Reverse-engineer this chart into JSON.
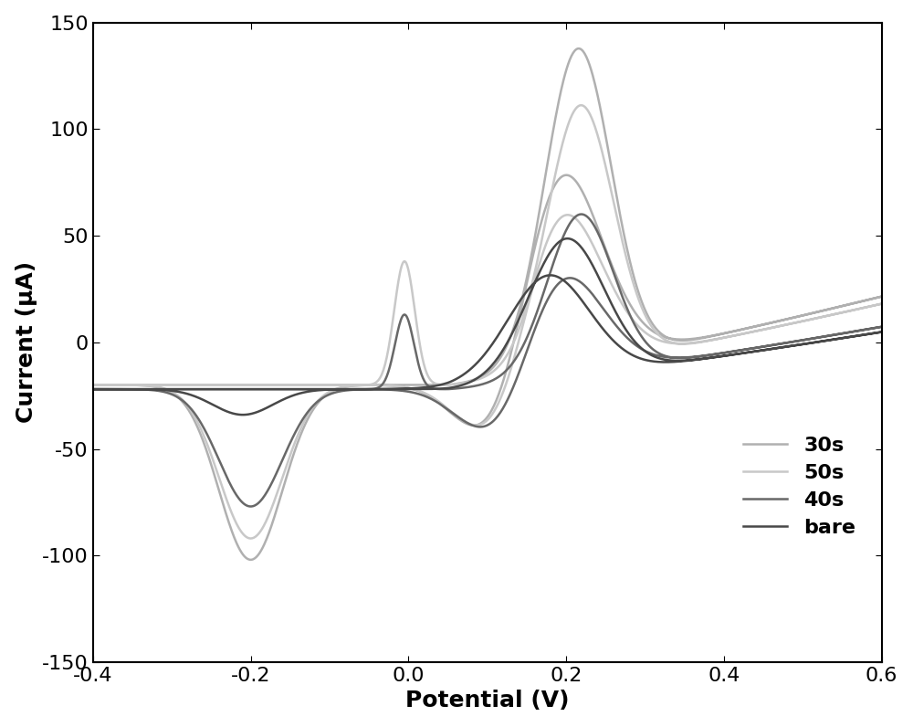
{
  "title": "",
  "xlabel": "Potential (V)",
  "ylabel": "Current (μA)",
  "xlim": [
    -0.4,
    0.6
  ],
  "ylim": [
    -150,
    150
  ],
  "xticks": [
    -0.4,
    -0.2,
    0.0,
    0.2,
    0.4,
    0.6
  ],
  "yticks": [
    -150,
    -100,
    -50,
    0,
    50,
    100,
    150
  ],
  "background_color": "#ffffff",
  "curves": {
    "bare": {
      "color": "#484848",
      "linewidth": 1.8,
      "label": "bare"
    },
    "30s": {
      "color": "#b0b0b0",
      "linewidth": 1.8,
      "label": "30s"
    },
    "40s": {
      "color": "#686868",
      "linewidth": 1.8,
      "label": "40s"
    },
    "50s": {
      "color": "#c8c8c8",
      "linewidth": 1.8,
      "label": "50s"
    }
  },
  "legend_fontsize": 16,
  "axis_fontsize": 18,
  "tick_fontsize": 16
}
